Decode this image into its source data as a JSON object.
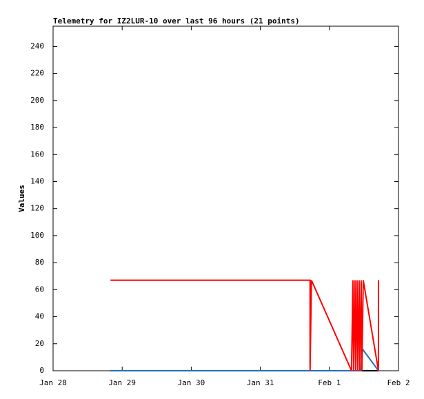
{
  "chart_data": {
    "type": "line",
    "title": "Telemetry for IZ2LUR-10 over last 96 hours (21 points)",
    "y_label": "Values",
    "xlim": [
      0,
      5
    ],
    "xticks": [
      {
        "value": 0,
        "label": "Jan 28"
      },
      {
        "value": 1,
        "label": "Jan 29"
      },
      {
        "value": 2,
        "label": "Jan 30"
      },
      {
        "value": 3,
        "label": "Jan 31"
      },
      {
        "value": 4,
        "label": "Feb 1"
      },
      {
        "value": 5,
        "label": "Feb 2"
      }
    ],
    "ylim": [
      0,
      255
    ],
    "yticks": [
      0,
      20,
      40,
      60,
      80,
      100,
      120,
      140,
      160,
      180,
      200,
      220,
      240
    ],
    "series": [
      {
        "color": "#000000",
        "x": [
          0.83,
          4.71
        ],
        "values": [
          0,
          0
        ]
      },
      {
        "color": "#1f6fbf",
        "x": [
          0.83,
          4.46,
          4.48,
          4.71
        ],
        "values": [
          0,
          0,
          16,
          0
        ]
      },
      {
        "color": "#ff0000",
        "x": [
          0.83,
          3.72,
          3.72,
          3.74,
          4.32,
          4.34,
          4.35,
          4.37,
          4.38,
          4.4,
          4.41,
          4.43,
          4.44,
          4.46,
          4.47,
          4.49,
          4.71,
          4.71
        ],
        "values": [
          67,
          67,
          0,
          67,
          0,
          67,
          0,
          67,
          0,
          67,
          0,
          67,
          0,
          67,
          0,
          67,
          0,
          67
        ]
      }
    ]
  }
}
